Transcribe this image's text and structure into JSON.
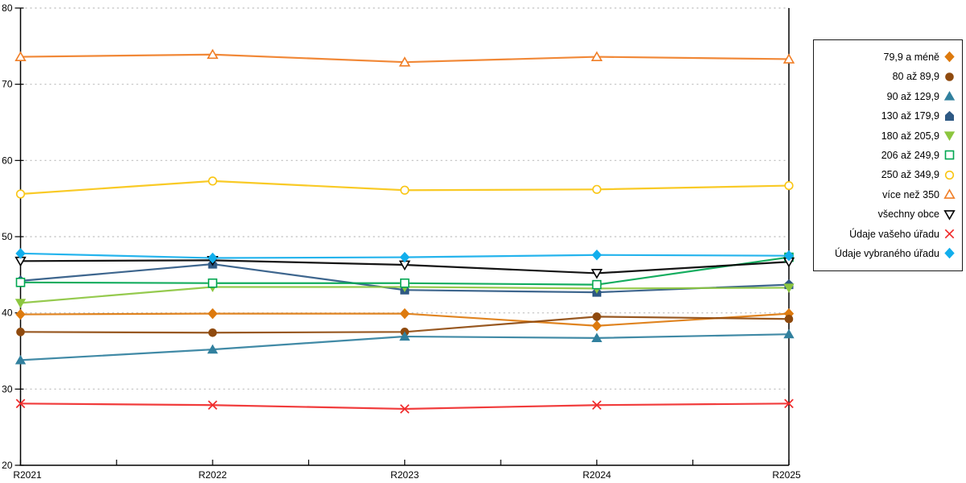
{
  "chart_data": {
    "type": "line",
    "title": "",
    "xlabel": "",
    "ylabel": "",
    "x_categories": [
      "R2021",
      "R2022",
      "R2023",
      "R2024",
      "R2025"
    ],
    "ylim": [
      20,
      80
    ],
    "y_tick_labels": [
      "20",
      "30",
      "40",
      "50",
      "60",
      "70",
      "80"
    ],
    "grid": "horizontal-dotted",
    "grid_color": "#b8b8b8",
    "axis_color": "#000000",
    "legend_position": "right",
    "series": [
      {
        "name": "79,9 a méně",
        "marker": "diamond",
        "fill": "filled",
        "color": "#DD7A0E",
        "values": [
          39.8,
          39.9,
          39.9,
          38.3,
          39.9
        ]
      },
      {
        "name": "80 až 89,9",
        "marker": "circle",
        "fill": "filled",
        "color": "#8F4A0E",
        "values": [
          37.5,
          37.4,
          37.5,
          39.5,
          39.2
        ]
      },
      {
        "name": "90 až 129,9",
        "marker": "triangle-up",
        "fill": "filled",
        "color": "#31809E",
        "values": [
          33.8,
          35.2,
          36.9,
          36.7,
          37.2
        ]
      },
      {
        "name": "130 až 179,9",
        "marker": "pentagon",
        "fill": "filled",
        "color": "#2E5984",
        "values": [
          44.2,
          46.4,
          43.0,
          42.7,
          43.7
        ]
      },
      {
        "name": "180 až 205,9",
        "marker": "triangle-down",
        "fill": "filled",
        "color": "#8CC63F",
        "values": [
          41.3,
          43.4,
          43.4,
          43.2,
          43.3
        ]
      },
      {
        "name": "206 až 249,9",
        "marker": "square",
        "fill": "open",
        "color": "#00A651",
        "values": [
          44.0,
          43.9,
          43.9,
          43.7,
          47.3
        ]
      },
      {
        "name": "250 až 349,9",
        "marker": "circle",
        "fill": "open",
        "color": "#F9C513",
        "values": [
          55.6,
          57.3,
          56.1,
          56.2,
          56.7
        ]
      },
      {
        "name": "více než 350",
        "marker": "triangle-up",
        "fill": "open",
        "color": "#F07E26",
        "values": [
          73.6,
          73.9,
          72.9,
          73.6,
          73.3
        ]
      },
      {
        "name": "všechny obce",
        "marker": "triangle-down",
        "fill": "open",
        "color": "#000000",
        "values": [
          46.8,
          46.9,
          46.3,
          45.2,
          46.7
        ]
      },
      {
        "name": "Údaje vašeho úřadu",
        "marker": "x",
        "fill": "open",
        "color": "#F02B2B",
        "values": [
          28.1,
          27.9,
          27.4,
          27.9,
          28.1
        ]
      },
      {
        "name": "Údaje vybraného úřadu",
        "marker": "diamond",
        "fill": "filled",
        "color": "#12AEEC",
        "values": [
          47.8,
          47.2,
          47.3,
          47.6,
          47.5
        ]
      }
    ]
  }
}
